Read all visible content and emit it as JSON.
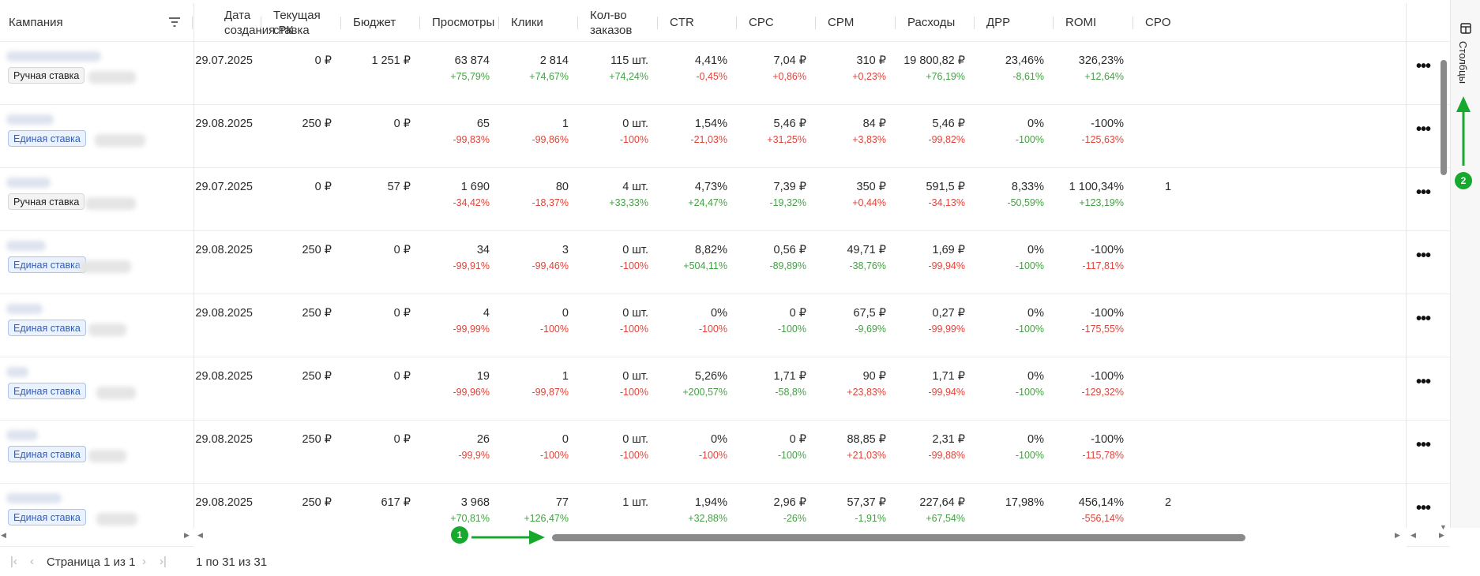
{
  "table": {
    "headers": {
      "campaign": "Кампания",
      "created": [
        "Дата",
        "создания РК"
      ],
      "rate": [
        "Текущая",
        "ставка"
      ],
      "budget": "Бюджет",
      "views": "Просмотры",
      "clicks": "Клики",
      "orders": [
        "Кол-во",
        "заказов"
      ],
      "ctr": "CTR",
      "cpc": "CPC",
      "cpm": "CPM",
      "spend": "Расходы",
      "drr": "ДРР",
      "romi": "ROMI",
      "cpo": "CPO"
    },
    "rows": [
      {
        "tag": "Ручная ставка",
        "tag_type": "manual",
        "created": "29.07.2025",
        "rate": "0 ₽",
        "budget": "1 251 ₽",
        "views": "63 874",
        "views_d": "+75,79%",
        "clicks": "2 814",
        "clicks_d": "+74,67%",
        "orders": "115 шт.",
        "orders_d": "+74,24%",
        "ctr": "4,41%",
        "ctr_d": "-0,45%",
        "cpc": "7,04 ₽",
        "cpc_d": "+0,86%",
        "cpm": "310 ₽",
        "cpm_d": "+0,23%",
        "spend": "19 800,82 ₽",
        "spend_d": "+76,19%",
        "drr": "23,46%",
        "drr_d": "-8,61%",
        "romi": "326,23%",
        "romi_d": "+12,64%",
        "cpo": ""
      },
      {
        "tag": "Единая ставка",
        "tag_type": "single",
        "created": "29.08.2025",
        "rate": "250 ₽",
        "budget": "0 ₽",
        "views": "65",
        "views_d": "-99,83%",
        "clicks": "1",
        "clicks_d": "-99,86%",
        "orders": "0 шт.",
        "orders_d": "-100%",
        "ctr": "1,54%",
        "ctr_d": "-21,03%",
        "cpc": "5,46 ₽",
        "cpc_d": "+31,25%",
        "cpm": "84 ₽",
        "cpm_d": "+3,83%",
        "spend": "5,46 ₽",
        "spend_d": "-99,82%",
        "drr": "0%",
        "drr_d": "-100%",
        "romi": "-100%",
        "romi_d": "-125,63%",
        "cpo": ""
      },
      {
        "tag": "Ручная ставка",
        "tag_type": "manual",
        "created": "29.07.2025",
        "rate": "0 ₽",
        "budget": "57 ₽",
        "views": "1 690",
        "views_d": "-34,42%",
        "clicks": "80",
        "clicks_d": "-18,37%",
        "orders": "4 шт.",
        "orders_d": "+33,33%",
        "ctr": "4,73%",
        "ctr_d": "+24,47%",
        "cpc": "7,39 ₽",
        "cpc_d": "-19,32%",
        "cpm": "350 ₽",
        "cpm_d": "+0,44%",
        "spend": "591,5 ₽",
        "spend_d": "-34,13%",
        "drr": "8,33%",
        "drr_d": "-50,59%",
        "romi": "1 100,34%",
        "romi_d": "+123,19%",
        "cpo": "1"
      },
      {
        "tag": "Единая ставка",
        "tag_type": "single",
        "created": "29.08.2025",
        "rate": "250 ₽",
        "budget": "0 ₽",
        "views": "34",
        "views_d": "-99,91%",
        "clicks": "3",
        "clicks_d": "-99,46%",
        "orders": "0 шт.",
        "orders_d": "-100%",
        "ctr": "8,82%",
        "ctr_d": "+504,11%",
        "cpc": "0,56 ₽",
        "cpc_d": "-89,89%",
        "cpm": "49,71 ₽",
        "cpm_d": "-38,76%",
        "spend": "1,69 ₽",
        "spend_d": "-99,94%",
        "drr": "0%",
        "drr_d": "-100%",
        "romi": "-100%",
        "romi_d": "-117,81%",
        "cpo": ""
      },
      {
        "tag": "Единая ставка",
        "tag_type": "single",
        "created": "29.08.2025",
        "rate": "250 ₽",
        "budget": "0 ₽",
        "views": "4",
        "views_d": "-99,99%",
        "clicks": "0",
        "clicks_d": "-100%",
        "orders": "0 шт.",
        "orders_d": "-100%",
        "ctr": "0%",
        "ctr_d": "-100%",
        "cpc": "0 ₽",
        "cpc_d": "-100%",
        "cpm": "67,5 ₽",
        "cpm_d": "-9,69%",
        "spend": "0,27 ₽",
        "spend_d": "-99,99%",
        "drr": "0%",
        "drr_d": "-100%",
        "romi": "-100%",
        "romi_d": "-175,55%",
        "cpo": ""
      },
      {
        "tag": "Единая ставка",
        "tag_type": "single",
        "created": "29.08.2025",
        "rate": "250 ₽",
        "budget": "0 ₽",
        "views": "19",
        "views_d": "-99,96%",
        "clicks": "1",
        "clicks_d": "-99,87%",
        "orders": "0 шт.",
        "orders_d": "-100%",
        "ctr": "5,26%",
        "ctr_d": "+200,57%",
        "cpc": "1,71 ₽",
        "cpc_d": "-58,8%",
        "cpm": "90 ₽",
        "cpm_d": "+23,83%",
        "spend": "1,71 ₽",
        "spend_d": "-99,94%",
        "drr": "0%",
        "drr_d": "-100%",
        "romi": "-100%",
        "romi_d": "-129,32%",
        "cpo": ""
      },
      {
        "tag": "Единая ставка",
        "tag_type": "single",
        "created": "29.08.2025",
        "rate": "250 ₽",
        "budget": "0 ₽",
        "views": "26",
        "views_d": "-99,9%",
        "clicks": "0",
        "clicks_d": "-100%",
        "orders": "0 шт.",
        "orders_d": "-100%",
        "ctr": "0%",
        "ctr_d": "-100%",
        "cpc": "0 ₽",
        "cpc_d": "-100%",
        "cpm": "88,85 ₽",
        "cpm_d": "+21,03%",
        "spend": "2,31 ₽",
        "spend_d": "-99,88%",
        "drr": "0%",
        "drr_d": "-100%",
        "romi": "-100%",
        "romi_d": "-115,78%",
        "cpo": ""
      },
      {
        "tag": "Единая ставка",
        "tag_type": "single",
        "created": "29.08.2025",
        "rate": "250 ₽",
        "budget": "617 ₽",
        "views": "3 968",
        "views_d": "+70,81%",
        "clicks": "77",
        "clicks_d": "+126,47%",
        "orders": "1 шт.",
        "orders_d": "",
        "ctr": "1,94%",
        "ctr_d": "+32,88%",
        "cpc": "2,96 ₽",
        "cpc_d": "-26%",
        "cpm": "57,37 ₽",
        "cpm_d": "-1,91%",
        "spend": "227,64 ₽",
        "spend_d": "+67,54%",
        "drr": "17,98%",
        "drr_d": "",
        "romi": "456,14%",
        "romi_d": "-556,14%",
        "cpo": "2"
      }
    ]
  },
  "side_panel": {
    "label": "Столбцы",
    "icon": "columns-icon"
  },
  "annotations": [
    {
      "number": "1",
      "direction": "right",
      "color": "#17a82e"
    },
    {
      "number": "2",
      "direction": "up",
      "color": "#17a82e"
    }
  ],
  "pagination": {
    "page_text": "Страница 1 из 1",
    "range_text": "1 по 31 из 31"
  },
  "colors": {
    "positive": "#46a046",
    "negative": "#e0443a",
    "single_tag": "#2f5fb8",
    "annotation": "#17a82e"
  }
}
